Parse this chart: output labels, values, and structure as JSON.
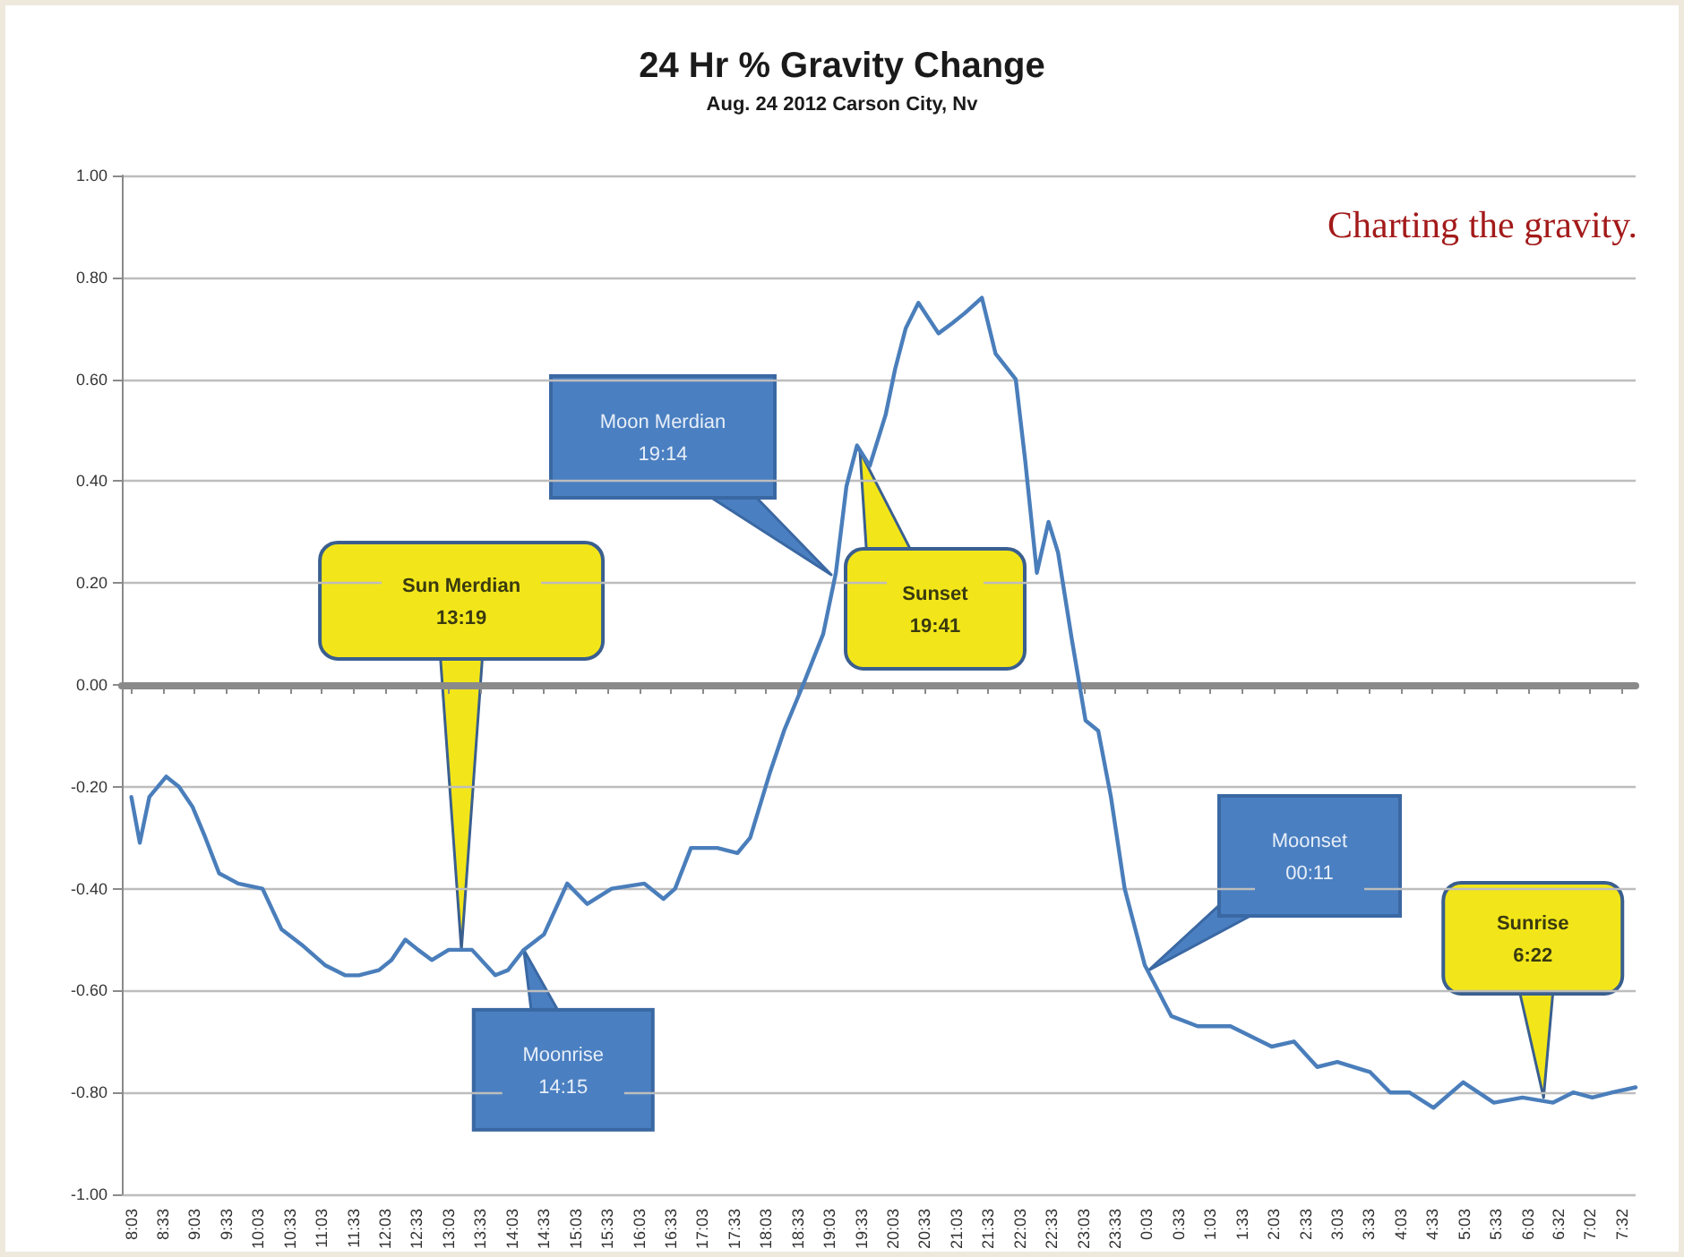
{
  "chart_data": {
    "type": "line",
    "title": "24 Hr % Gravity Change",
    "subtitle": "Aug. 24 2012 Carson City, Nv",
    "series": [
      {
        "color": "#4a7ebb",
        "x": [
          "2012-08-24T08:03",
          "2012-08-24T08:11",
          "2012-08-24T08:20",
          "2012-08-24T08:36",
          "2012-08-24T08:48",
          "2012-08-24T09:01",
          "2012-08-24T09:13",
          "2012-08-24T09:26",
          "2012-08-24T09:44",
          "2012-08-24T10:07",
          "2012-08-24T10:25",
          "2012-08-24T10:44",
          "2012-08-24T11:06",
          "2012-08-24T11:25",
          "2012-08-24T11:38",
          "2012-08-24T11:57",
          "2012-08-24T12:09",
          "2012-08-24T12:22",
          "2012-08-24T12:34",
          "2012-08-24T12:47",
          "2012-08-24T13:03",
          "2012-08-24T13:25",
          "2012-08-24T13:47",
          "2012-08-24T13:59",
          "2012-08-24T14:14",
          "2012-08-24T14:33",
          "2012-08-24T14:55",
          "2012-08-24T15:14",
          "2012-08-24T15:37",
          "2012-08-24T16:08",
          "2012-08-24T16:26",
          "2012-08-24T16:37",
          "2012-08-24T16:52",
          "2012-08-24T17:17",
          "2012-08-24T17:36",
          "2012-08-24T17:48",
          "2012-08-24T18:07",
          "2012-08-24T18:20",
          "2012-08-24T18:38",
          "2012-08-24T18:57",
          "2012-08-24T19:09",
          "2012-08-24T19:19",
          "2012-08-24T19:29",
          "2012-08-24T19:41",
          "2012-08-24T19:56",
          "2012-08-24T20:05",
          "2012-08-24T20:15",
          "2012-08-24T20:27",
          "2012-08-24T20:46",
          "2012-08-24T20:59",
          "2012-08-24T21:11",
          "2012-08-24T21:27",
          "2012-08-24T21:40",
          "2012-08-24T21:59",
          "2012-08-24T22:08",
          "2012-08-24T22:19",
          "2012-08-24T22:30",
          "2012-08-24T22:39",
          "2012-08-24T22:52",
          "2012-08-24T23:05",
          "2012-08-24T23:17",
          "2012-08-24T23:29",
          "2012-08-24T23:42",
          "2012-08-25T00:01",
          "2012-08-25T00:26",
          "2012-08-25T00:51",
          "2012-08-25T01:22",
          "2012-08-25T02:01",
          "2012-08-25T02:22",
          "2012-08-25T02:44",
          "2012-08-25T03:03",
          "2012-08-25T03:34",
          "2012-08-25T03:53",
          "2012-08-25T04:11",
          "2012-08-25T04:34",
          "2012-08-25T05:02",
          "2012-08-25T05:31",
          "2012-08-25T05:58",
          "2012-08-25T06:27",
          "2012-08-25T06:46",
          "2012-08-25T07:04",
          "2012-08-25T07:23",
          "2012-08-25T07:45"
        ],
        "values": [
          -0.22,
          -0.31,
          -0.22,
          -0.18,
          -0.2,
          -0.24,
          -0.3,
          -0.37,
          -0.39,
          -0.4,
          -0.48,
          -0.51,
          -0.55,
          -0.57,
          -0.57,
          -0.56,
          -0.54,
          -0.5,
          -0.52,
          -0.54,
          -0.52,
          -0.52,
          -0.57,
          -0.56,
          -0.52,
          -0.49,
          -0.39,
          -0.43,
          -0.4,
          -0.39,
          -0.42,
          -0.4,
          -0.32,
          -0.32,
          -0.33,
          -0.3,
          -0.17,
          -0.09,
          0.0,
          0.1,
          0.22,
          0.39,
          0.47,
          0.43,
          0.53,
          0.62,
          0.7,
          0.75,
          0.69,
          0.71,
          0.73,
          0.76,
          0.65,
          0.6,
          0.44,
          0.22,
          0.32,
          0.26,
          0.09,
          -0.07,
          -0.09,
          -0.22,
          -0.4,
          -0.55,
          -0.65,
          -0.67,
          -0.67,
          -0.71,
          -0.7,
          -0.75,
          -0.74,
          -0.76,
          -0.8,
          -0.8,
          -0.83,
          -0.78,
          -0.82,
          -0.81,
          -0.82,
          -0.8,
          -0.81,
          -0.8,
          -0.79
        ]
      }
    ],
    "xlim": [
      "2012-08-24T07:54",
      "2012-08-25T07:45"
    ],
    "xticks": [
      {
        "value": "2012-08-24T08:03",
        "label": "8:03"
      },
      {
        "value": "2012-08-24T08:33",
        "label": "8:33"
      },
      {
        "value": "2012-08-24T09:03",
        "label": "9:03"
      },
      {
        "value": "2012-08-24T09:33",
        "label": "9:33"
      },
      {
        "value": "2012-08-24T10:03",
        "label": "10:03"
      },
      {
        "value": "2012-08-24T10:33",
        "label": "10:33"
      },
      {
        "value": "2012-08-24T11:03",
        "label": "11:03"
      },
      {
        "value": "2012-08-24T11:33",
        "label": "11:33"
      },
      {
        "value": "2012-08-24T12:03",
        "label": "12:03"
      },
      {
        "value": "2012-08-24T12:33",
        "label": "12:33"
      },
      {
        "value": "2012-08-24T13:03",
        "label": "13:03"
      },
      {
        "value": "2012-08-24T13:33",
        "label": "13:33"
      },
      {
        "value": "2012-08-24T14:03",
        "label": "14:03"
      },
      {
        "value": "2012-08-24T14:33",
        "label": "14:33"
      },
      {
        "value": "2012-08-24T15:03",
        "label": "15:03"
      },
      {
        "value": "2012-08-24T15:33",
        "label": "15:33"
      },
      {
        "value": "2012-08-24T16:03",
        "label": "16:03"
      },
      {
        "value": "2012-08-24T16:33",
        "label": "16:33"
      },
      {
        "value": "2012-08-24T17:03",
        "label": "17:03"
      },
      {
        "value": "2012-08-24T17:33",
        "label": "17:33"
      },
      {
        "value": "2012-08-24T18:03",
        "label": "18:03"
      },
      {
        "value": "2012-08-24T18:33",
        "label": "18:33"
      },
      {
        "value": "2012-08-24T19:03",
        "label": "19:03"
      },
      {
        "value": "2012-08-24T19:33",
        "label": "19:33"
      },
      {
        "value": "2012-08-24T20:03",
        "label": "20:03"
      },
      {
        "value": "2012-08-24T20:33",
        "label": "20:33"
      },
      {
        "value": "2012-08-24T21:03",
        "label": "21:03"
      },
      {
        "value": "2012-08-24T21:33",
        "label": "21:33"
      },
      {
        "value": "2012-08-24T22:03",
        "label": "22:03"
      },
      {
        "value": "2012-08-24T22:33",
        "label": "22:33"
      },
      {
        "value": "2012-08-24T23:03",
        "label": "23:03"
      },
      {
        "value": "2012-08-24T23:33",
        "label": "23:33"
      },
      {
        "value": "2012-08-25T00:03",
        "label": "0:03"
      },
      {
        "value": "2012-08-25T00:33",
        "label": "0:33"
      },
      {
        "value": "2012-08-25T01:03",
        "label": "1:03"
      },
      {
        "value": "2012-08-25T01:33",
        "label": "1:33"
      },
      {
        "value": "2012-08-25T02:03",
        "label": "2:03"
      },
      {
        "value": "2012-08-25T02:33",
        "label": "2:33"
      },
      {
        "value": "2012-08-25T03:03",
        "label": "3:03"
      },
      {
        "value": "2012-08-25T03:33",
        "label": "3:33"
      },
      {
        "value": "2012-08-25T04:03",
        "label": "4:03"
      },
      {
        "value": "2012-08-25T04:33",
        "label": "4:33"
      },
      {
        "value": "2012-08-25T05:03",
        "label": "5:03"
      },
      {
        "value": "2012-08-25T05:33",
        "label": "5:33"
      },
      {
        "value": "2012-08-25T06:03",
        "label": "6:03"
      },
      {
        "value": "2012-08-25T06:32",
        "label": "6:32"
      },
      {
        "value": "2012-08-25T07:02",
        "label": "7:02"
      },
      {
        "value": "2012-08-25T07:32",
        "label": "7:32"
      }
    ],
    "ylim": [
      -1,
      1
    ],
    "yticks": [
      {
        "value": -1,
        "label": "-1.00"
      },
      {
        "value": -0.8,
        "label": "-0.80"
      },
      {
        "value": -0.6,
        "label": "-0.60"
      },
      {
        "value": -0.4,
        "label": "-0.40"
      },
      {
        "value": -0.2,
        "label": "-0.20"
      },
      {
        "value": 0,
        "label": "0.00"
      },
      {
        "value": 0.2,
        "label": "0.20"
      },
      {
        "value": 0.4,
        "label": "0.40"
      },
      {
        "value": 0.6,
        "label": "0.60"
      },
      {
        "value": 0.8,
        "label": "0.80"
      },
      {
        "value": 1,
        "label": "1.00"
      }
    ],
    "grid": "y",
    "marker": "none",
    "line_style": "solid",
    "annotations": [
      "Charting the gravity.",
      {
        "text": "Sun Merdian\n13:19",
        "x": "2012-08-24T13:15",
        "y": -0.52
      },
      {
        "text": "Moonrise\n14:15",
        "x": "2012-08-24T14:14",
        "y": -0.52
      },
      "Moon Merdian\n19:14",
      "Sunset\n19:41",
      "Moonset\n00:11",
      {
        "text": "Sunrise\n6:22",
        "x": "2012-08-25T06:18",
        "y": -0.81
      }
    ]
  }
}
